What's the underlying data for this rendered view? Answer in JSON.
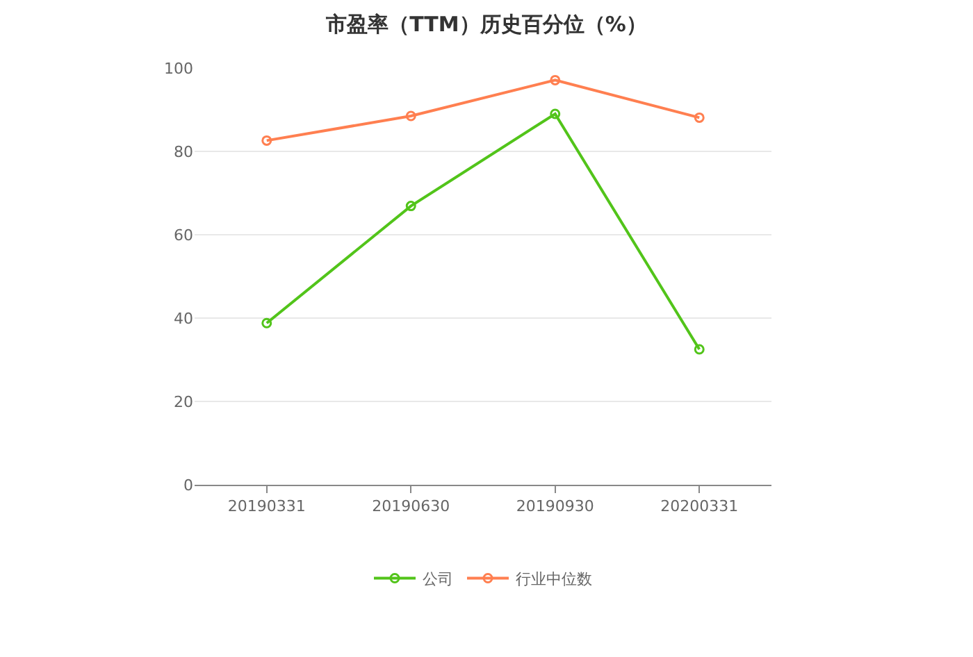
{
  "chart_data": {
    "type": "line",
    "title": "市盈率（TTM）历史百分位（%）",
    "categories": [
      "20190331",
      "20190630",
      "20190930",
      "20200331"
    ],
    "series": [
      {
        "name": "公司",
        "color": "#52c41a",
        "values": [
          38.8,
          66.9,
          89.0,
          32.5
        ]
      },
      {
        "name": "行业中位数",
        "color": "#ff7f50",
        "values": [
          82.6,
          88.5,
          97.1,
          88.1
        ]
      }
    ],
    "ylim": [
      0,
      100
    ],
    "yticks": [
      0,
      20,
      40,
      60,
      80,
      100
    ],
    "grid": "y",
    "legend": "bottom",
    "marker": "circle",
    "line_style": "solid"
  }
}
